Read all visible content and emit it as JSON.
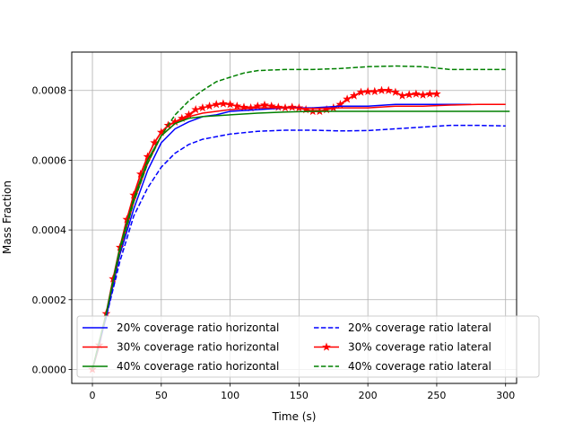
{
  "chart_data": {
    "type": "line",
    "title": "",
    "xlabel": "Time (s)",
    "ylabel": "Mass Fraction",
    "xlim": [
      -15,
      308
    ],
    "ylim": [
      -4e-05,
      0.00091
    ],
    "xticks": [
      0,
      50,
      100,
      150,
      200,
      250,
      300
    ],
    "xtick_labels": [
      "0",
      "50",
      "100",
      "150",
      "200",
      "250",
      "300"
    ],
    "yticks": [
      0,
      0.0002,
      0.0004,
      0.0006,
      0.0008
    ],
    "ytick_labels": [
      "0.0000",
      "0.0002",
      "0.0004",
      "0.0006",
      "0.0008"
    ],
    "grid": true,
    "legend": {
      "location": "lower-center",
      "columns": 2
    },
    "series": [
      {
        "name": "20% coverage ratio horizontal",
        "color": "#0000ff",
        "style": "solid",
        "marker": "none",
        "x": [
          0,
          10,
          20,
          30,
          40,
          50,
          60,
          70,
          80,
          90,
          100,
          120,
          140,
          160,
          180,
          200,
          220,
          240,
          260,
          275
        ],
        "y": [
          0,
          0.00015,
          0.00033,
          0.00046,
          0.00057,
          0.00065,
          0.00069,
          0.00071,
          0.000725,
          0.00073,
          0.00074,
          0.000745,
          0.00075,
          0.00075,
          0.000755,
          0.000755,
          0.00076,
          0.00076,
          0.00076,
          0.00076
        ]
      },
      {
        "name": "30% coverage ratio horizontal",
        "color": "#ff0000",
        "style": "solid",
        "marker": "none",
        "x": [
          0,
          10,
          20,
          30,
          40,
          50,
          60,
          70,
          80,
          100,
          120,
          140,
          160,
          180,
          200,
          220,
          240,
          260,
          280,
          300
        ],
        "y": [
          0,
          0.00016,
          0.00034,
          0.00048,
          0.00059,
          0.00067,
          0.000705,
          0.000725,
          0.000735,
          0.000745,
          0.00075,
          0.00075,
          0.000748,
          0.00075,
          0.00075,
          0.000755,
          0.000755,
          0.000758,
          0.00076,
          0.00076
        ]
      },
      {
        "name": "40% coverage ratio horizontal",
        "color": "#008000",
        "style": "solid",
        "marker": "none",
        "x": [
          0,
          10,
          20,
          30,
          40,
          50,
          60,
          70,
          80,
          100,
          120,
          140,
          160,
          180,
          200,
          220,
          240,
          260,
          280,
          303
        ],
        "y": [
          0,
          0.00016,
          0.00035,
          0.00049,
          0.0006,
          0.00067,
          0.000705,
          0.00072,
          0.000725,
          0.00073,
          0.000735,
          0.000738,
          0.00074,
          0.00074,
          0.00074,
          0.00074,
          0.00074,
          0.00074,
          0.00074,
          0.00074
        ]
      },
      {
        "name": "20% coverage ratio lateral",
        "color": "#0000ff",
        "style": "dashed",
        "marker": "none",
        "x": [
          0,
          10,
          20,
          30,
          40,
          50,
          60,
          70,
          80,
          100,
          120,
          140,
          160,
          180,
          200,
          220,
          240,
          260,
          280,
          300
        ],
        "y": [
          0,
          0.00015,
          0.00031,
          0.00044,
          0.00052,
          0.00058,
          0.00062,
          0.000645,
          0.00066,
          0.000675,
          0.000683,
          0.000686,
          0.000686,
          0.000684,
          0.000685,
          0.00069,
          0.000695,
          0.0007,
          0.0007,
          0.000698
        ]
      },
      {
        "name": "30% coverage ratio lateral",
        "color": "#ff0000",
        "style": "solid",
        "marker": "star",
        "x": [
          0,
          5,
          10,
          15,
          20,
          25,
          30,
          35,
          40,
          45,
          50,
          55,
          60,
          65,
          70,
          75,
          80,
          85,
          90,
          95,
          100,
          105,
          110,
          115,
          120,
          125,
          130,
          135,
          140,
          145,
          150,
          155,
          160,
          165,
          170,
          175,
          180,
          185,
          190,
          195,
          200,
          205,
          210,
          215,
          220,
          225,
          230,
          235,
          240,
          245,
          250
        ],
        "y": [
          0,
          7e-05,
          0.00016,
          0.00026,
          0.00035,
          0.00043,
          0.0005,
          0.00056,
          0.00061,
          0.00065,
          0.00068,
          0.0007,
          0.00071,
          0.00072,
          0.00073,
          0.000745,
          0.00075,
          0.000755,
          0.00076,
          0.000762,
          0.00076,
          0.000755,
          0.000752,
          0.00075,
          0.000755,
          0.000758,
          0.000755,
          0.000752,
          0.00075,
          0.000752,
          0.00075,
          0.000745,
          0.00074,
          0.00074,
          0.000745,
          0.00075,
          0.00076,
          0.000775,
          0.000785,
          0.000795,
          0.000797,
          0.000797,
          0.0008,
          0.0008,
          0.000795,
          0.000785,
          0.000788,
          0.00079,
          0.000787,
          0.00079,
          0.00079
        ]
      },
      {
        "name": "40% coverage ratio lateral",
        "color": "#008000",
        "style": "dashed",
        "marker": "none",
        "x": [
          0,
          10,
          20,
          30,
          40,
          50,
          60,
          70,
          80,
          90,
          100,
          110,
          120,
          140,
          160,
          180,
          200,
          220,
          240,
          260,
          280,
          300
        ],
        "y": [
          0,
          0.00016,
          0.00034,
          0.00048,
          0.00059,
          0.00067,
          0.00073,
          0.00077,
          0.0008,
          0.000825,
          0.000838,
          0.00085,
          0.000857,
          0.00086,
          0.00086,
          0.000863,
          0.000868,
          0.00087,
          0.000868,
          0.00086,
          0.00086,
          0.00086
        ]
      }
    ]
  }
}
